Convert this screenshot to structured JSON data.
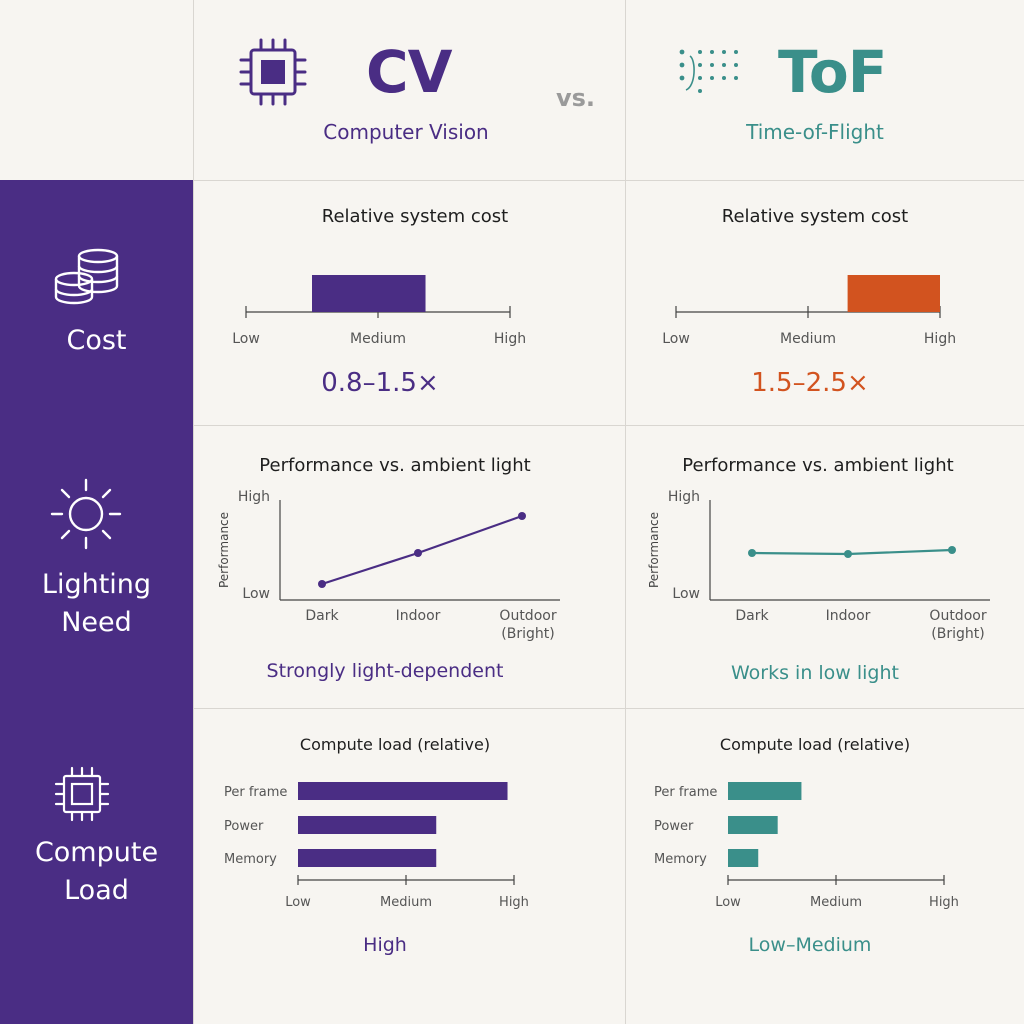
{
  "colors": {
    "cv": "#4a2d84",
    "tof": "#3a8f8a",
    "tof_cost": "#d2531f",
    "sidebar": "#4a2d84"
  },
  "header": {
    "cv_title": "CV",
    "cv_subtitle": "Computer Vision",
    "vs": "vs.",
    "tof_title": "ToF",
    "tof_subtitle": "Time-of-Flight",
    "cv_icon": "cpu-chip-icon",
    "tof_icon": "dot-grid-icon"
  },
  "rows": {
    "cost": {
      "label": "Cost",
      "icon": "coin-stack-icon"
    },
    "lighting": {
      "label_line1": "Lighting",
      "label_line2": "Need",
      "icon": "sun-icon"
    },
    "compute": {
      "label_line1": "Compute",
      "label_line2": "Load",
      "icon": "chip-icon"
    }
  },
  "chart_data": [
    {
      "id": "cv-cost",
      "type": "bar",
      "title": "Relative system cost",
      "ticks": [
        "Low",
        "Medium",
        "High"
      ],
      "range_start": 0.25,
      "range_end": 0.68,
      "value_label": "0.8–1.5×",
      "color": "#4a2d84"
    },
    {
      "id": "tof-cost",
      "type": "bar",
      "title": "Relative system cost",
      "ticks": [
        "Low",
        "Medium",
        "High"
      ],
      "range_start": 0.65,
      "range_end": 1.0,
      "value_label": "1.5–2.5×",
      "color": "#d2531f"
    },
    {
      "id": "cv-lighting",
      "type": "line",
      "title": "Performance vs. ambient light",
      "ylabel": "Performance",
      "yticks": [
        "Low",
        "High"
      ],
      "categories": [
        "Dark",
        "Indoor",
        "Outdoor (Bright)"
      ],
      "values": [
        0.12,
        0.43,
        0.8
      ],
      "caption": "Strongly light-dependent",
      "color": "#4a2d84"
    },
    {
      "id": "tof-lighting",
      "type": "line",
      "title": "Performance vs. ambient light",
      "ylabel": "Performance",
      "yticks": [
        "Low",
        "High"
      ],
      "categories": [
        "Dark",
        "Indoor",
        "Outdoor (Bright)"
      ],
      "values": [
        0.43,
        0.42,
        0.46
      ],
      "caption": "Works in low light",
      "color": "#3a8f8a"
    },
    {
      "id": "cv-compute",
      "type": "bar",
      "title": "Compute load (relative)",
      "categories": [
        "Per frame",
        "Power",
        "Memory"
      ],
      "values": [
        0.97,
        0.64,
        0.64
      ],
      "xticks": [
        "Low",
        "Medium",
        "High"
      ],
      "caption": "High",
      "color": "#4a2d84"
    },
    {
      "id": "tof-compute",
      "type": "bar",
      "title": "Compute load (relative)",
      "categories": [
        "Per frame",
        "Power",
        "Memory"
      ],
      "values": [
        0.34,
        0.23,
        0.14
      ],
      "xticks": [
        "Low",
        "Medium",
        "High"
      ],
      "caption": "Low–Medium",
      "color": "#3a8f8a"
    }
  ]
}
